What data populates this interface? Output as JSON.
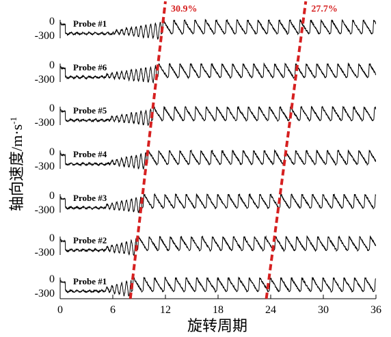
{
  "chart_data": {
    "type": "line",
    "xlabel": "旋转周期",
    "ylabel": "轴向速度/m·s",
    "ylabel_superscript": "-1",
    "xlim": [
      0,
      36
    ],
    "xticks": [
      "0",
      "6",
      "12",
      "18",
      "24",
      "30",
      "36"
    ],
    "yticks": [
      "0",
      "-300"
    ],
    "grid": false,
    "series": [
      {
        "name": "Probe #1",
        "stall_onset": 11.5,
        "fluct_onset": 6.0
      },
      {
        "name": "Probe #6",
        "stall_onset": 11.0,
        "fluct_onset": 5.0
      },
      {
        "name": "Probe #5",
        "stall_onset": 10.4,
        "fluct_onset": 5.5
      },
      {
        "name": "Probe #4",
        "stall_onset": 9.8,
        "fluct_onset": 5.5
      },
      {
        "name": "Probe #3",
        "stall_onset": 9.3,
        "fluct_onset": 5.0
      },
      {
        "name": "Probe #2",
        "stall_onset": 8.7,
        "fluct_onset": 5.0
      },
      {
        "name": "Probe #1",
        "stall_onset": 8.1,
        "fluct_onset": 5.0
      }
    ],
    "annotations": [
      {
        "text": "30.9%",
        "line_x": [
          8.0,
          12.0
        ]
      },
      {
        "text": "27.7%",
        "line_x": [
          23.5,
          28.0
        ]
      }
    ]
  }
}
